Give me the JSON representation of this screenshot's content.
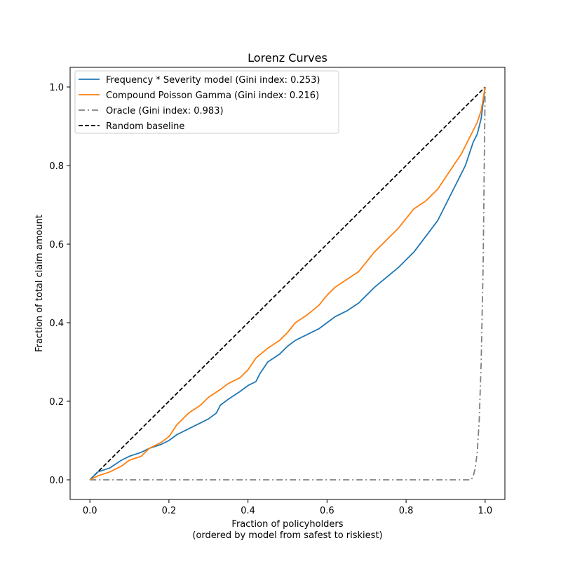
{
  "chart_data": {
    "type": "line",
    "title": "Lorenz Curves",
    "xlabel": "Fraction of policyholders",
    "xlabel_sub": "(ordered by model from safest to riskiest)",
    "ylabel": "Fraction of total claim amount",
    "xlim": [
      -0.05,
      1.05
    ],
    "ylim": [
      -0.05,
      1.05
    ],
    "x_ticks": [
      0.0,
      0.2,
      0.4,
      0.6,
      0.8,
      1.0
    ],
    "y_ticks": [
      0.0,
      0.2,
      0.4,
      0.6,
      0.8,
      1.0
    ],
    "x_tick_labels": [
      "0.0",
      "0.2",
      "0.4",
      "0.6",
      "0.8",
      "1.0"
    ],
    "y_tick_labels": [
      "0.0",
      "0.2",
      "0.4",
      "0.6",
      "0.8",
      "1.0"
    ],
    "grid": false,
    "legend_position": "top-left",
    "series": [
      {
        "name": "Frequency * Severity model (Gini index: 0.253)",
        "color": "#1f77b4",
        "style": "solid",
        "x": [
          0.0,
          0.02,
          0.05,
          0.08,
          0.1,
          0.13,
          0.15,
          0.18,
          0.2,
          0.22,
          0.25,
          0.28,
          0.3,
          0.32,
          0.33,
          0.35,
          0.38,
          0.4,
          0.42,
          0.43,
          0.45,
          0.48,
          0.5,
          0.52,
          0.55,
          0.58,
          0.6,
          0.62,
          0.65,
          0.68,
          0.7,
          0.72,
          0.75,
          0.78,
          0.8,
          0.82,
          0.85,
          0.88,
          0.9,
          0.92,
          0.94,
          0.95,
          0.96,
          0.97,
          0.98,
          0.99,
          1.0
        ],
        "y": [
          0.0,
          0.02,
          0.03,
          0.05,
          0.06,
          0.07,
          0.08,
          0.09,
          0.1,
          0.115,
          0.13,
          0.145,
          0.155,
          0.17,
          0.19,
          0.205,
          0.225,
          0.24,
          0.25,
          0.27,
          0.3,
          0.32,
          0.34,
          0.355,
          0.37,
          0.385,
          0.4,
          0.415,
          0.43,
          0.45,
          0.47,
          0.49,
          0.515,
          0.54,
          0.56,
          0.58,
          0.62,
          0.66,
          0.7,
          0.74,
          0.78,
          0.8,
          0.83,
          0.86,
          0.88,
          0.92,
          1.0
        ]
      },
      {
        "name": "Compound Poisson Gamma (Gini index: 0.216)",
        "color": "#ff7f0e",
        "style": "solid",
        "x": [
          0.0,
          0.02,
          0.05,
          0.08,
          0.1,
          0.13,
          0.15,
          0.18,
          0.2,
          0.22,
          0.25,
          0.28,
          0.3,
          0.33,
          0.35,
          0.38,
          0.4,
          0.42,
          0.45,
          0.48,
          0.5,
          0.52,
          0.55,
          0.58,
          0.6,
          0.62,
          0.65,
          0.68,
          0.7,
          0.72,
          0.75,
          0.78,
          0.8,
          0.82,
          0.85,
          0.88,
          0.9,
          0.92,
          0.94,
          0.95,
          0.96,
          0.97,
          0.98,
          0.99,
          1.0
        ],
        "y": [
          0.0,
          0.01,
          0.02,
          0.035,
          0.05,
          0.06,
          0.08,
          0.095,
          0.11,
          0.14,
          0.17,
          0.19,
          0.21,
          0.23,
          0.245,
          0.26,
          0.28,
          0.31,
          0.335,
          0.355,
          0.375,
          0.4,
          0.42,
          0.445,
          0.47,
          0.49,
          0.51,
          0.53,
          0.555,
          0.58,
          0.61,
          0.64,
          0.665,
          0.69,
          0.71,
          0.74,
          0.77,
          0.8,
          0.83,
          0.85,
          0.87,
          0.89,
          0.91,
          0.94,
          1.0
        ]
      },
      {
        "name": "Oracle (Gini index: 0.983)",
        "color": "#808080",
        "style": "dashdot",
        "x": [
          0.0,
          0.5,
          0.965,
          0.97,
          0.975,
          0.98,
          0.985,
          0.99,
          0.995,
          1.0
        ],
        "y": [
          0.0,
          0.0,
          0.0,
          0.01,
          0.03,
          0.07,
          0.15,
          0.3,
          0.55,
          1.0
        ]
      },
      {
        "name": "Random baseline",
        "color": "#000000",
        "style": "dashed",
        "x": [
          0.0,
          1.0
        ],
        "y": [
          0.0,
          1.0
        ]
      }
    ]
  }
}
